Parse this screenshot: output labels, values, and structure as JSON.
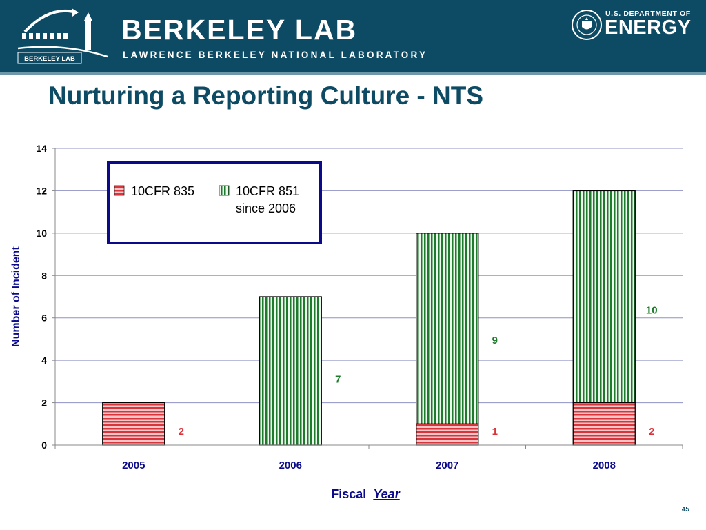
{
  "header": {
    "logo_label": "BERKELEY LAB",
    "lab_name": "BERKELEY LAB",
    "lab_subtitle": "LAWRENCE BERKELEY NATIONAL LABORATORY",
    "doe_line1": "U.S. DEPARTMENT OF",
    "doe_line2": "ENERGY"
  },
  "slide": {
    "title": "Nurturing a Reporting Culture - NTS",
    "page_number": "45"
  },
  "colors": {
    "header_bg": "#0d4a63",
    "series_835": "#d7343c",
    "series_851": "#1e7a2c",
    "legend_border": "#0a0a8a",
    "axis_label": "#0a0a8a"
  },
  "chart_data": {
    "type": "bar",
    "stacked": true,
    "categories": [
      "2005",
      "2006",
      "2007",
      "2008"
    ],
    "series": [
      {
        "name": "10CFR 835",
        "pattern": "horizontal-stripes",
        "values": [
          2,
          0,
          1,
          2
        ],
        "labels": [
          "2",
          "",
          "1",
          "2"
        ]
      },
      {
        "name": "10CFR 851 since 2006",
        "pattern": "vertical-stripes",
        "values": [
          0,
          7,
          9,
          10
        ],
        "labels": [
          "",
          "7",
          "9",
          "10"
        ]
      }
    ],
    "legend": {
      "entries": [
        {
          "line1": "10CFR 835",
          "line2": ""
        },
        {
          "line1": "10CFR 851",
          "line2": "since 2006"
        }
      ],
      "position": "top-left"
    },
    "ylim": [
      0,
      14
    ],
    "yticks": [
      "0",
      "2",
      "4",
      "6",
      "8",
      "10",
      "12",
      "14"
    ],
    "ylabel": "Number of Incident",
    "xlabel_part1": "Fiscal",
    "xlabel_part2": "Year",
    "grid": true
  }
}
